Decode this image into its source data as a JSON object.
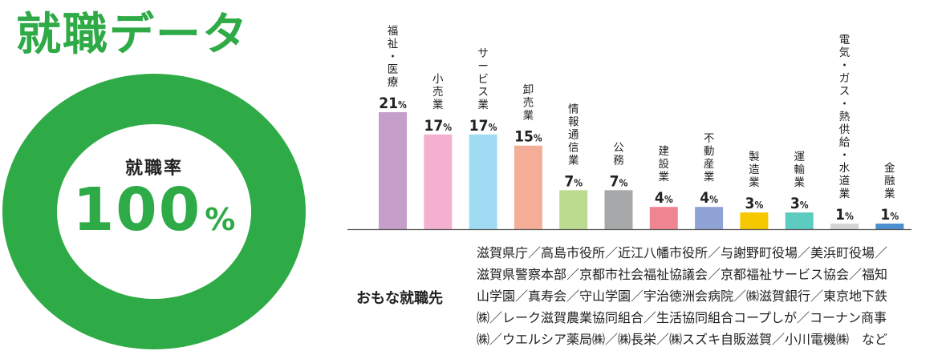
{
  "page": {
    "title": "就職データ",
    "rate_label": "就職率",
    "rate_value": "100",
    "rate_unit": "%"
  },
  "colors": {
    "accent": "#2eaa46"
  },
  "employers": {
    "heading": "おもな就職先",
    "lines": [
      "滋賀県庁／高島市役所／近江八幡市役所／与謝野町役場／美浜町役場／",
      "滋賀県警察本部／京都市社会福祉協議会／京都福祉サービス協会／福知",
      "山学園／真寿会／守山学園／宇治徳洲会病院／㈱滋賀銀行／東京地下鉄",
      "㈱／レーク滋賀農業協同組合／生活協同組合コープしが／コーナン商事",
      "㈱／ウエルシア薬局㈱／㈱長栄／㈱スズキ自販滋賀／小川電機㈱　など"
    ]
  },
  "chart_data": {
    "type": "bar",
    "unit": "%",
    "ylim": [
      0,
      21
    ],
    "categories": [
      "福祉・医療",
      "小売業",
      "サービス業",
      "卸売業",
      "情報通信業",
      "公務",
      "建設業",
      "不動産業",
      "製造業",
      "運輸業",
      "電気・ガス・熱供給・水道業",
      "金融業"
    ],
    "values": [
      21,
      17,
      17,
      15,
      7,
      7,
      4,
      4,
      3,
      3,
      1,
      1
    ],
    "bar_colors": [
      "#c59fc9",
      "#f4b1cf",
      "#9fdcf4",
      "#f4ad96",
      "#bcdb8f",
      "#a7a8aa",
      "#ef8590",
      "#8fa3d6",
      "#f6c800",
      "#5ccbc0",
      "#d4d4d4",
      "#4a8fcf"
    ]
  }
}
